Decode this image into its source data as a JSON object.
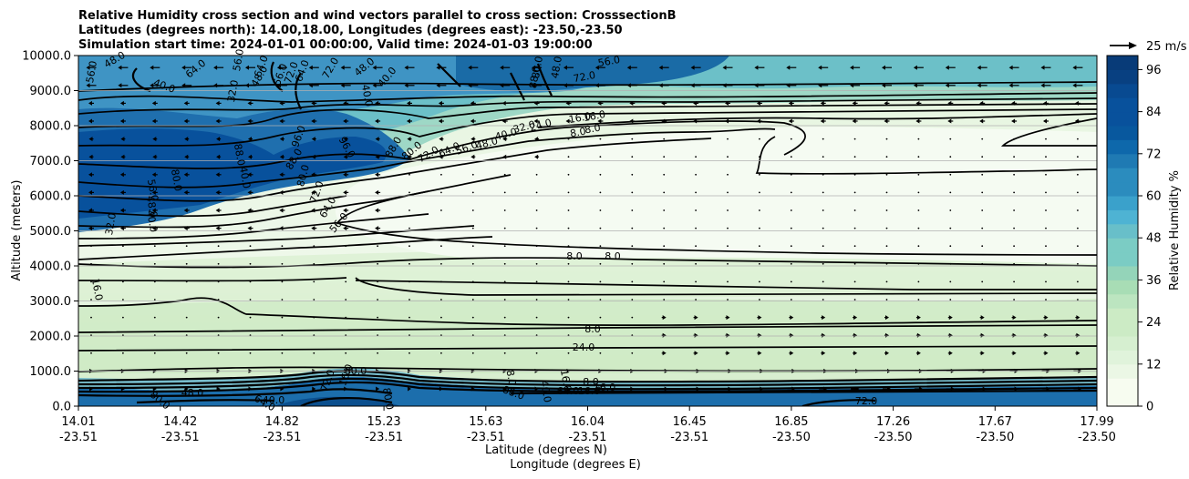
{
  "chart_data": {
    "type": "contourf",
    "title_lines": [
      "Relative Humidity cross section and wind vectors parallel to cross section: CrosssectionB",
      "Latitudes (degrees north): 14.00,18.00, Longitudes (degrees east): -23.50,-23.50",
      "Simulation start time: 2024-01-01 00:00:00, Valid time: 2024-01-03 19:00:00"
    ],
    "xlabel_lat": "Latitude (degrees N)",
    "xlabel_lon": "Longitude (degrees E)",
    "ylabel": "Altitude (meters)",
    "xticks": [
      {
        "lat": "14.01",
        "lon": "-23.51"
      },
      {
        "lat": "14.42",
        "lon": "-23.51"
      },
      {
        "lat": "14.82",
        "lon": "-23.51"
      },
      {
        "lat": "15.23",
        "lon": "-23.51"
      },
      {
        "lat": "15.63",
        "lon": "-23.51"
      },
      {
        "lat": "16.04",
        "lon": "-23.51"
      },
      {
        "lat": "16.45",
        "lon": "-23.51"
      },
      {
        "lat": "16.85",
        "lon": "-23.50"
      },
      {
        "lat": "17.26",
        "lon": "-23.50"
      },
      {
        "lat": "17.67",
        "lon": "-23.50"
      },
      {
        "lat": "17.99",
        "lon": "-23.50"
      }
    ],
    "yticks": [
      "0.0",
      "1000.0",
      "2000.0",
      "3000.0",
      "4000.0",
      "5000.0",
      "6000.0",
      "7000.0",
      "8000.0",
      "9000.0",
      "10000.0"
    ],
    "ylim": [
      0,
      10000
    ],
    "colorbar": {
      "label": "Relative Humidity %",
      "ticks": [
        "0",
        "12",
        "24",
        "36",
        "48",
        "60",
        "72",
        "84",
        "96"
      ],
      "levels": [
        0,
        4,
        8,
        12,
        16,
        20,
        24,
        28,
        32,
        36,
        40,
        44,
        48,
        52,
        56,
        60,
        64,
        68,
        72,
        76,
        80,
        84,
        88,
        92,
        96,
        100
      ],
      "colormap": "GnBu"
    },
    "quiver_key": "25 m/s",
    "contour_labels": [
      "56.0",
      "48.0",
      "64.0",
      "56.0",
      "64.0",
      "72.0",
      "40.0",
      "32.0",
      "48.0",
      "56.0",
      "64.0",
      "72.0",
      "48.0",
      "40.0",
      "40.0",
      "96.0",
      "88.0",
      "80.0",
      "72.0",
      "64.0",
      "56.0",
      "96.0",
      "88.0",
      "16.0",
      "8.0",
      "16.0",
      "8.0",
      "88.0",
      "80.0",
      "72.0",
      "64.0",
      "56.0",
      "48.0",
      "40.0",
      "32.0",
      "24.0",
      "40.0",
      "80.0",
      "56.0",
      "48.0",
      "40.0",
      "32.0",
      "88.0",
      "80.0",
      "72.0",
      "48.0",
      "56.0",
      "16.0",
      "8.0",
      "8.0",
      "8.0",
      "24.0",
      "16.0",
      "8.0",
      "16.0",
      "16.0",
      "80.0",
      "40.0",
      "48.0",
      "64.0",
      "72.0",
      "80.0",
      "88.0",
      "72.0",
      "8.0",
      "40.0",
      "64.0",
      "16.0",
      "80.0"
    ],
    "grid": "horizontal"
  }
}
